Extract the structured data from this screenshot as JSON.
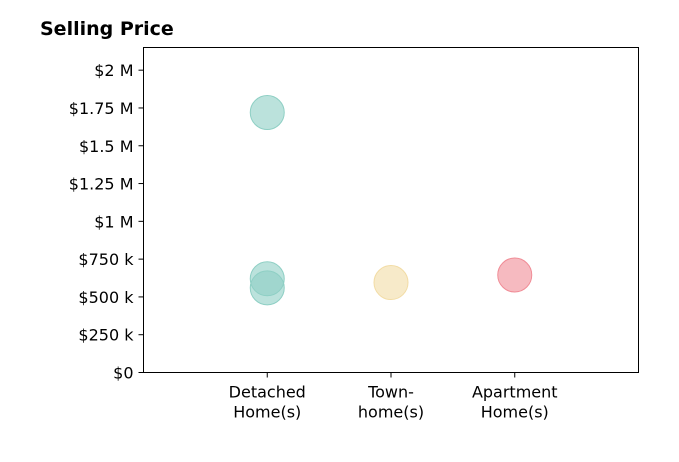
{
  "chart_data": {
    "type": "scatter",
    "title": "Selling Price",
    "xlabel": "",
    "ylabel": "",
    "categories": [
      [
        "Detached",
        "Home(s)"
      ],
      [
        "Town-",
        "home(s)"
      ],
      [
        "Apartment",
        "Home(s)"
      ]
    ],
    "ylim": [
      0,
      2150000
    ],
    "y_ticks": [
      {
        "value": 0,
        "label": "$0"
      },
      {
        "value": 250000,
        "label": "$250 k"
      },
      {
        "value": 500000,
        "label": "$500 k"
      },
      {
        "value": 750000,
        "label": "$750 k"
      },
      {
        "value": 1000000,
        "label": "$1 M"
      },
      {
        "value": 1250000,
        "label": "$1.25 M"
      },
      {
        "value": 1500000,
        "label": "$1.5 M"
      },
      {
        "value": 1750000,
        "label": "$1.75 M"
      },
      {
        "value": 2000000,
        "label": "$2 M"
      }
    ],
    "points": [
      {
        "category": 0,
        "y": 1720000
      },
      {
        "category": 0,
        "y": 620000
      },
      {
        "category": 0,
        "y": 560000
      },
      {
        "category": 1,
        "y": 595000
      },
      {
        "category": 2,
        "y": 645000
      }
    ],
    "category_colors": [
      "#8ecfc4",
      "#f2dca5",
      "#f08c96"
    ],
    "grid": false,
    "legend": "none"
  }
}
